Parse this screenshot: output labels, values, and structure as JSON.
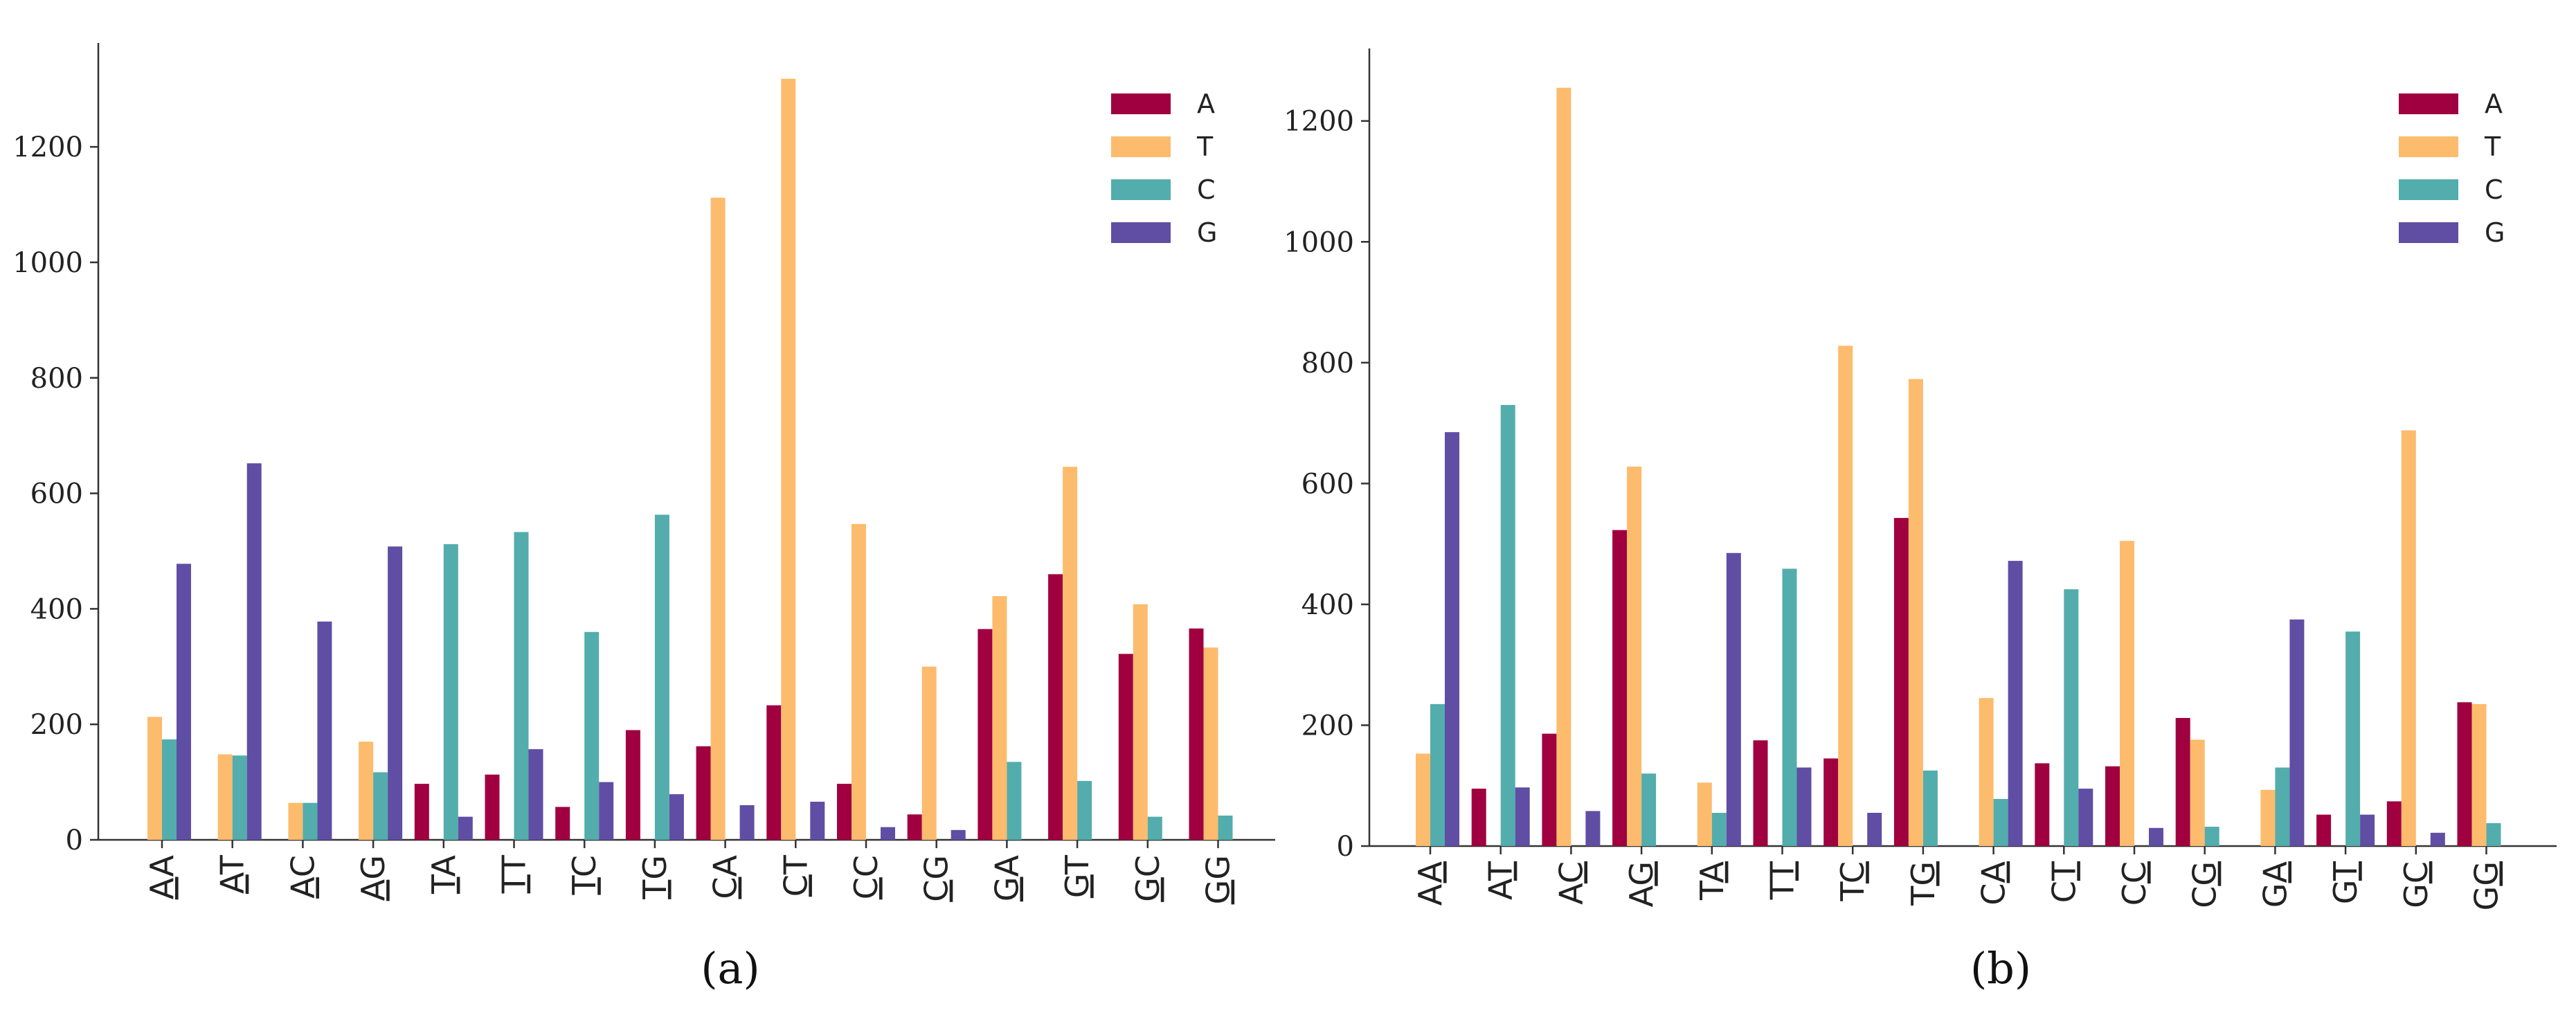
{
  "colors": {
    "A": "#a0003f",
    "T": "#fdbb6d",
    "C": "#53adac",
    "G": "#5f4ea3"
  },
  "chart_data": [
    {
      "type": "bar",
      "caption": "(a)",
      "categories": [
        "AA",
        "AT",
        "AC",
        "AG",
        "TA",
        "TT",
        "TC",
        "TG",
        "CA",
        "CT",
        "CC",
        "CG",
        "GA",
        "GT",
        "GC",
        "GG"
      ],
      "underline_index": [
        0,
        0,
        0,
        0,
        0,
        0,
        0,
        0,
        0,
        0,
        0,
        0,
        0,
        0,
        0,
        0
      ],
      "ylim": [
        0,
        1380
      ],
      "yticks": [
        0,
        200,
        400,
        600,
        800,
        1000,
        1200
      ],
      "legend_position": "top-right",
      "series": [
        {
          "name": "A",
          "values": [
            0,
            0,
            0,
            0,
            97,
            113,
            57,
            190,
            162,
            233,
            97,
            44,
            365,
            460,
            322,
            366
          ]
        },
        {
          "name": "T",
          "values": [
            213,
            148,
            64,
            170,
            0,
            0,
            0,
            0,
            1112,
            1318,
            547,
            300,
            422,
            646,
            408,
            333
          ]
        },
        {
          "name": "C",
          "values": [
            174,
            146,
            64,
            117,
            512,
            533,
            360,
            563,
            0,
            0,
            0,
            0,
            135,
            102,
            40,
            42
          ]
        },
        {
          "name": "G",
          "values": [
            478,
            652,
            378,
            508,
            40,
            157,
            100,
            79,
            60,
            66,
            22,
            17,
            0,
            0,
            0,
            0
          ]
        }
      ]
    },
    {
      "type": "bar",
      "caption": "(b)",
      "categories": [
        "AA",
        "AT",
        "AC",
        "AG",
        "TA",
        "TT",
        "TC",
        "TG",
        "CA",
        "CT",
        "CC",
        "CG",
        "GA",
        "GT",
        "GC",
        "GG"
      ],
      "underline_index": [
        1,
        1,
        1,
        1,
        1,
        1,
        1,
        1,
        1,
        1,
        1,
        1,
        1,
        1,
        1,
        1
      ],
      "ylim": [
        0,
        1320
      ],
      "yticks": [
        0,
        200,
        400,
        600,
        800,
        1000,
        1200
      ],
      "legend_position": "top-right",
      "series": [
        {
          "name": "A",
          "values": [
            0,
            95,
            186,
            523,
            0,
            175,
            145,
            543,
            0,
            137,
            132,
            212,
            0,
            52,
            74,
            238
          ]
        },
        {
          "name": "T",
          "values": [
            153,
            0,
            1255,
            628,
            105,
            0,
            828,
            773,
            245,
            0,
            505,
            176,
            93,
            0,
            688,
            235
          ]
        },
        {
          "name": "C",
          "values": [
            235,
            730,
            0,
            120,
            55,
            459,
            0,
            125,
            78,
            425,
            0,
            32,
            130,
            355,
            0,
            38
          ]
        },
        {
          "name": "G",
          "values": [
            685,
            97,
            58,
            0,
            485,
            130,
            55,
            0,
            472,
            95,
            30,
            0,
            375,
            52,
            22,
            0
          ]
        }
      ]
    }
  ]
}
